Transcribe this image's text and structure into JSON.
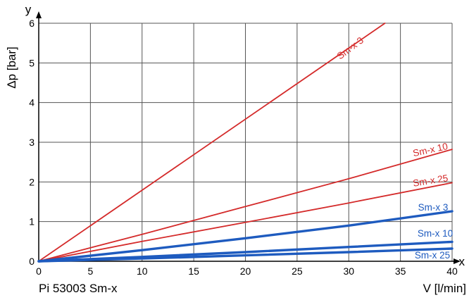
{
  "chart_data": {
    "type": "line",
    "title": "",
    "caption": "Pi 53003 Sm-x",
    "xlabel": "V [l/min]",
    "ylabel": "Δp [bar]",
    "x_axis_letter": "x",
    "y_axis_letter": "y",
    "xlim": [
      0,
      40
    ],
    "ylim": [
      0,
      6
    ],
    "x_ticks": [
      0,
      5,
      10,
      15,
      20,
      25,
      30,
      35,
      40
    ],
    "y_ticks": [
      0,
      1,
      2,
      3,
      4,
      5,
      6
    ],
    "grid": true,
    "series": [
      {
        "name": "Sm-x 3",
        "color": "#d42a2a",
        "weight": "thin",
        "x": [
          0,
          33.5
        ],
        "y": [
          0,
          6.0
        ]
      },
      {
        "name": "Sm-x 10",
        "color": "#d42a2a",
        "weight": "thin",
        "x": [
          0,
          10,
          20,
          30,
          40
        ],
        "y": [
          0,
          0.68,
          1.38,
          2.08,
          2.82
        ]
      },
      {
        "name": "Sm-x 25",
        "color": "#d42a2a",
        "weight": "thin",
        "x": [
          0,
          10,
          20,
          30,
          40
        ],
        "y": [
          0,
          0.5,
          0.98,
          1.47,
          1.98
        ]
      },
      {
        "name": "Sm-x 3",
        "color": "#1e5bbf",
        "weight": "thick",
        "x": [
          0,
          10,
          20,
          30,
          40
        ],
        "y": [
          0,
          0.28,
          0.58,
          0.9,
          1.26
        ]
      },
      {
        "name": "Sm-x 10",
        "color": "#1e5bbf",
        "weight": "thick",
        "x": [
          0,
          10,
          20,
          30,
          40
        ],
        "y": [
          0,
          0.11,
          0.23,
          0.36,
          0.49
        ]
      },
      {
        "name": "Sm-x 25",
        "color": "#1e5bbf",
        "weight": "thick",
        "x": [
          0,
          10,
          20,
          30,
          40
        ],
        "y": [
          0,
          0.07,
          0.15,
          0.23,
          0.32
        ]
      }
    ]
  }
}
